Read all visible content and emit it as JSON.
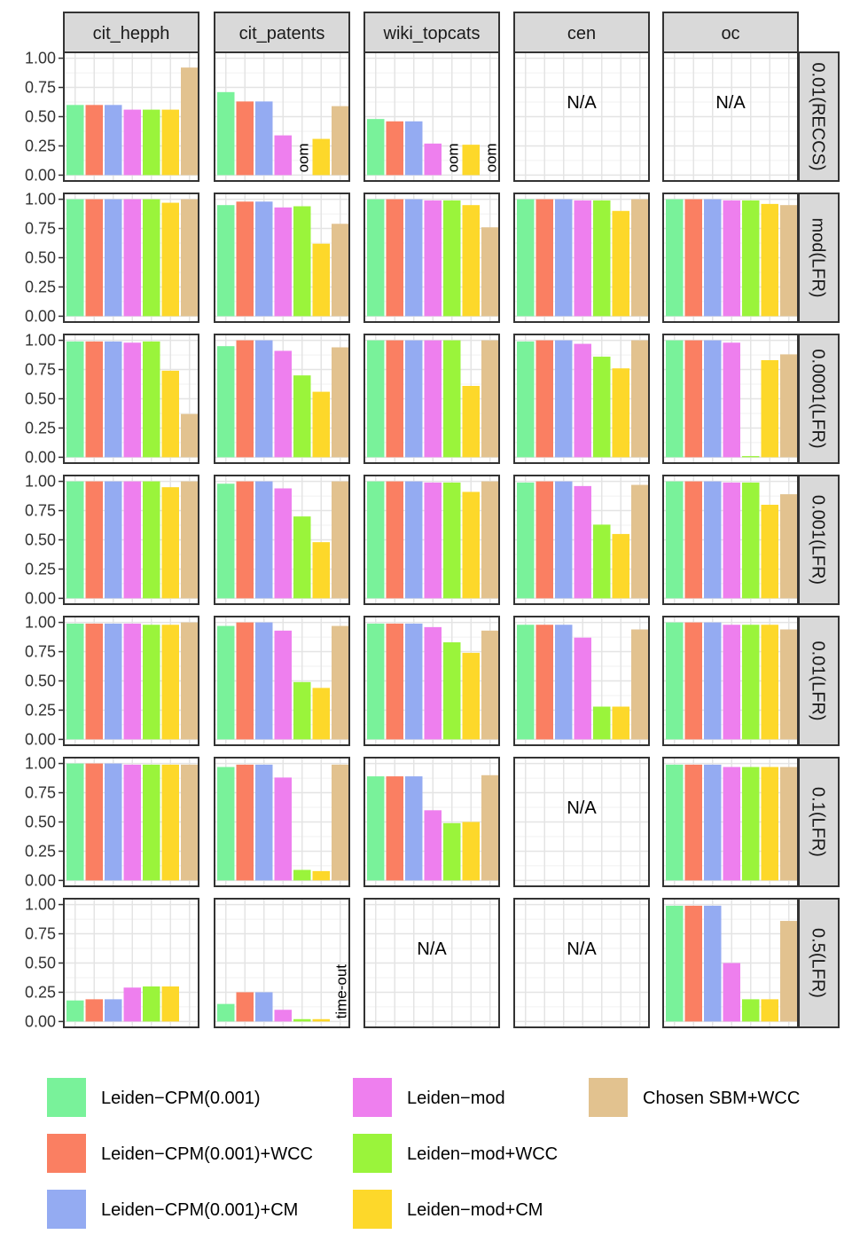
{
  "chart_data": {
    "type": "bar",
    "title": "",
    "xlabel": "",
    "ylabel": "",
    "ylim": [
      0,
      1
    ],
    "y_ticks": [
      "0.00",
      "0.25",
      "0.50",
      "0.75",
      "1.00"
    ],
    "y_tick_values": [
      0,
      0.25,
      0.5,
      0.75,
      1.0
    ],
    "na_label": "N/A",
    "columns": [
      "cit_hepph",
      "cit_patents",
      "wiki_topcats",
      "cen",
      "oc"
    ],
    "rows": [
      "0.01(RECCS)",
      "mod(LFR)",
      "0.0001(LFR)",
      "0.001(LFR)",
      "0.01(LFR)",
      "0.1(LFR)",
      "0.5(LFR)"
    ],
    "series": [
      {
        "name": "Leiden−CPM(0.001)",
        "color": "#79F29A"
      },
      {
        "name": "Leiden−CPM(0.001)+WCC",
        "color": "#FA7F62"
      },
      {
        "name": "Leiden−CPM(0.001)+CM",
        "color": "#94ABF2"
      },
      {
        "name": "Leiden−mod",
        "color": "#EE7FEE"
      },
      {
        "name": "Leiden−mod+WCC",
        "color": "#9AF43B"
      },
      {
        "name": "Leiden−mod+CM",
        "color": "#FDD82A"
      },
      {
        "name": "Chosen SBM+WCC",
        "color": "#E2C28F"
      }
    ],
    "legend_position": "bottom",
    "panels": [
      [
        {
          "values": [
            0.6,
            0.6,
            0.6,
            0.56,
            0.56,
            0.56,
            0.92
          ],
          "labels": [
            "",
            "",
            "",
            "",
            "",
            "",
            ""
          ],
          "na": false
        },
        {
          "values": [
            0.71,
            0.63,
            0.63,
            0.34,
            null,
            0.31,
            0.59
          ],
          "labels": [
            "",
            "",
            "",
            "",
            "oom",
            "",
            ""
          ],
          "na": false
        },
        {
          "values": [
            0.48,
            0.46,
            0.46,
            0.27,
            null,
            0.26,
            null
          ],
          "labels": [
            "",
            "",
            "",
            "",
            "oom",
            "",
            "oom"
          ],
          "na": false
        },
        {
          "values": [],
          "labels": [],
          "na": true
        },
        {
          "values": [],
          "labels": [],
          "na": true
        }
      ],
      [
        {
          "values": [
            1.0,
            1.0,
            1.0,
            1.0,
            1.0,
            0.97,
            1.0
          ],
          "labels": [
            "",
            "",
            "",
            "",
            "",
            "",
            ""
          ],
          "na": false
        },
        {
          "values": [
            0.95,
            0.98,
            0.98,
            0.93,
            0.94,
            0.62,
            0.79
          ],
          "labels": [
            "",
            "",
            "",
            "",
            "",
            "",
            ""
          ],
          "na": false
        },
        {
          "values": [
            1.0,
            1.0,
            1.0,
            0.99,
            0.99,
            0.95,
            0.76
          ],
          "labels": [
            "",
            "",
            "",
            "",
            "",
            "",
            ""
          ],
          "na": false
        },
        {
          "values": [
            1.0,
            1.0,
            1.0,
            0.99,
            0.99,
            0.9,
            1.0
          ],
          "labels": [
            "",
            "",
            "",
            "",
            "",
            "",
            ""
          ],
          "na": false
        },
        {
          "values": [
            1.0,
            1.0,
            1.0,
            0.99,
            0.99,
            0.96,
            0.95
          ],
          "labels": [
            "",
            "",
            "",
            "",
            "",
            "",
            ""
          ],
          "na": false
        }
      ],
      [
        {
          "values": [
            0.99,
            0.99,
            0.99,
            0.98,
            0.99,
            0.74,
            0.37
          ],
          "labels": [
            "",
            "",
            "",
            "",
            "",
            "",
            ""
          ],
          "na": false
        },
        {
          "values": [
            0.95,
            1.0,
            1.0,
            0.91,
            0.7,
            0.56,
            0.94
          ],
          "labels": [
            "",
            "",
            "",
            "",
            "",
            "",
            ""
          ],
          "na": false
        },
        {
          "values": [
            1.0,
            1.0,
            1.0,
            1.0,
            1.0,
            0.61,
            1.0
          ],
          "labels": [
            "",
            "",
            "",
            "",
            "",
            "",
            ""
          ],
          "na": false
        },
        {
          "values": [
            0.99,
            1.0,
            1.0,
            0.97,
            0.86,
            0.76,
            1.0
          ],
          "labels": [
            "",
            "",
            "",
            "",
            "",
            "",
            ""
          ],
          "na": false
        },
        {
          "values": [
            1.0,
            1.0,
            1.0,
            0.98,
            0.01,
            0.83,
            0.88
          ],
          "labels": [
            "",
            "",
            "",
            "",
            "",
            "",
            ""
          ],
          "na": false
        }
      ],
      [
        {
          "values": [
            1.0,
            1.0,
            1.0,
            1.0,
            1.0,
            0.95,
            1.0
          ],
          "labels": [
            "",
            "",
            "",
            "",
            "",
            "",
            ""
          ],
          "na": false
        },
        {
          "values": [
            0.98,
            1.0,
            1.0,
            0.94,
            0.7,
            0.48,
            1.0
          ],
          "labels": [
            "",
            "",
            "",
            "",
            "",
            "",
            ""
          ],
          "na": false
        },
        {
          "values": [
            1.0,
            1.0,
            1.0,
            0.99,
            0.99,
            0.91,
            1.0
          ],
          "labels": [
            "",
            "",
            "",
            "",
            "",
            "",
            ""
          ],
          "na": false
        },
        {
          "values": [
            0.99,
            1.0,
            1.0,
            0.96,
            0.63,
            0.55,
            0.97
          ],
          "labels": [
            "",
            "",
            "",
            "",
            "",
            "",
            ""
          ],
          "na": false
        },
        {
          "values": [
            1.0,
            1.0,
            1.0,
            0.99,
            0.99,
            0.8,
            0.89
          ],
          "labels": [
            "",
            "",
            "",
            "",
            "",
            "",
            ""
          ],
          "na": false
        }
      ],
      [
        {
          "values": [
            0.99,
            0.99,
            0.99,
            0.99,
            0.98,
            0.98,
            1.0
          ],
          "labels": [
            "",
            "",
            "",
            "",
            "",
            "",
            ""
          ],
          "na": false
        },
        {
          "values": [
            0.97,
            1.0,
            1.0,
            0.93,
            0.49,
            0.44,
            0.97
          ],
          "labels": [
            "",
            "",
            "",
            "",
            "",
            "",
            ""
          ],
          "na": false
        },
        {
          "values": [
            0.99,
            0.99,
            0.99,
            0.96,
            0.83,
            0.74,
            0.93
          ],
          "labels": [
            "",
            "",
            "",
            "",
            "",
            "",
            ""
          ],
          "na": false
        },
        {
          "values": [
            0.98,
            0.98,
            0.98,
            0.87,
            0.28,
            0.28,
            0.94
          ],
          "labels": [
            "",
            "",
            "",
            "",
            "",
            "",
            ""
          ],
          "na": false
        },
        {
          "values": [
            1.0,
            1.0,
            1.0,
            0.98,
            0.98,
            0.98,
            0.94
          ],
          "labels": [
            "",
            "",
            "",
            "",
            "",
            "",
            ""
          ],
          "na": false
        }
      ],
      [
        {
          "values": [
            1.0,
            1.0,
            1.0,
            0.99,
            0.99,
            0.99,
            0.99
          ],
          "labels": [
            "",
            "",
            "",
            "",
            "",
            "",
            ""
          ],
          "na": false
        },
        {
          "values": [
            0.97,
            0.99,
            0.99,
            0.88,
            0.09,
            0.08,
            0.99
          ],
          "labels": [
            "",
            "",
            "",
            "",
            "",
            "",
            ""
          ],
          "na": false
        },
        {
          "values": [
            0.89,
            0.89,
            0.89,
            0.6,
            0.49,
            0.5,
            0.9
          ],
          "labels": [
            "",
            "",
            "",
            "",
            "",
            "",
            ""
          ],
          "na": false
        },
        {
          "values": [],
          "labels": [],
          "na": true
        },
        {
          "values": [
            0.99,
            0.99,
            0.99,
            0.97,
            0.97,
            0.97,
            0.97
          ],
          "labels": [
            "",
            "",
            "",
            "",
            "",
            "",
            ""
          ],
          "na": false
        }
      ],
      [
        {
          "values": [
            0.18,
            0.19,
            0.19,
            0.29,
            0.3,
            0.3,
            null
          ],
          "labels": [
            "",
            "",
            "",
            "",
            "",
            "",
            ""
          ],
          "na": false
        },
        {
          "values": [
            0.15,
            0.25,
            0.25,
            0.1,
            0.02,
            0.02,
            null
          ],
          "labels": [
            "",
            "",
            "",
            "",
            "",
            "",
            "time-out"
          ],
          "na": false
        },
        {
          "values": [],
          "labels": [],
          "na": true
        },
        {
          "values": [],
          "labels": [],
          "na": true
        },
        {
          "values": [
            0.99,
            0.99,
            0.99,
            0.5,
            0.19,
            0.19,
            0.86
          ],
          "labels": [
            "",
            "",
            "",
            "",
            "",
            "",
            ""
          ],
          "na": false
        }
      ]
    ]
  }
}
